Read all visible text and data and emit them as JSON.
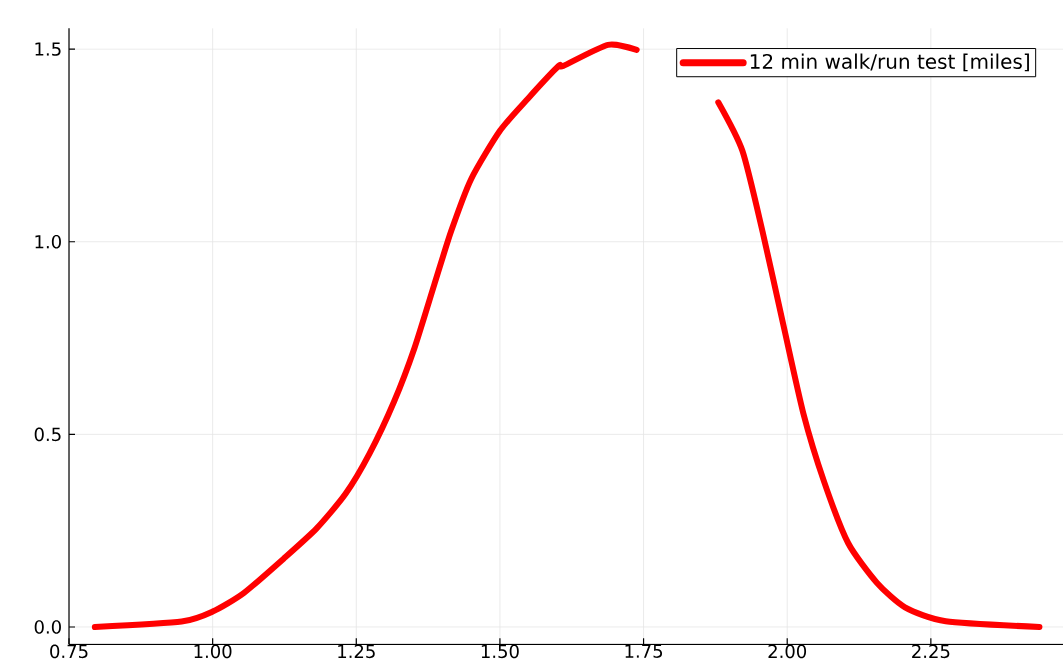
{
  "chart_data": {
    "type": "line",
    "series": [
      {
        "name": "12 min walk/run test [miles]",
        "color": "#ff0000",
        "x": [
          0.795,
          0.946,
          1.0,
          1.054,
          1.124,
          1.181,
          1.231,
          1.273,
          1.316,
          1.351,
          1.386,
          1.415,
          1.45,
          1.5,
          1.549,
          1.602,
          1.61,
          1.688,
          1.738,
          1.81,
          1.88,
          1.922,
          1.957,
          1.993,
          2.028,
          2.064,
          2.106,
          2.156,
          2.205,
          2.276,
          2.439
        ],
        "values": [
          0.0,
          0.014,
          0.04,
          0.088,
          0.178,
          0.256,
          0.345,
          0.45,
          0.586,
          0.723,
          0.89,
          1.027,
          1.163,
          1.288,
          1.372,
          1.456,
          1.456,
          1.511,
          1.498,
          null,
          1.362,
          1.236,
          1.027,
          0.786,
          0.555,
          0.378,
          0.218,
          0.115,
          0.051,
          0.015,
          0.0
        ]
      }
    ],
    "xlim": [
      0.75,
      2.48
    ],
    "ylim": [
      -0.045,
      1.554
    ],
    "xticks": [
      {
        "value": 0.75,
        "label": "0.75"
      },
      {
        "value": 1.0,
        "label": "1.00"
      },
      {
        "value": 1.25,
        "label": "1.25"
      },
      {
        "value": 1.5,
        "label": "1.50"
      },
      {
        "value": 1.75,
        "label": "1.75"
      },
      {
        "value": 2.0,
        "label": "2.00"
      },
      {
        "value": 2.25,
        "label": "2.25"
      }
    ],
    "yticks": [
      {
        "value": 0,
        "label": "0.0"
      },
      {
        "value": 0.5,
        "label": "0.5"
      },
      {
        "value": 1.0,
        "label": "1.0"
      },
      {
        "value": 1.5,
        "label": "1.5"
      }
    ],
    "grid": true,
    "legend": "top right",
    "line_style": "solid",
    "marker": "none"
  }
}
